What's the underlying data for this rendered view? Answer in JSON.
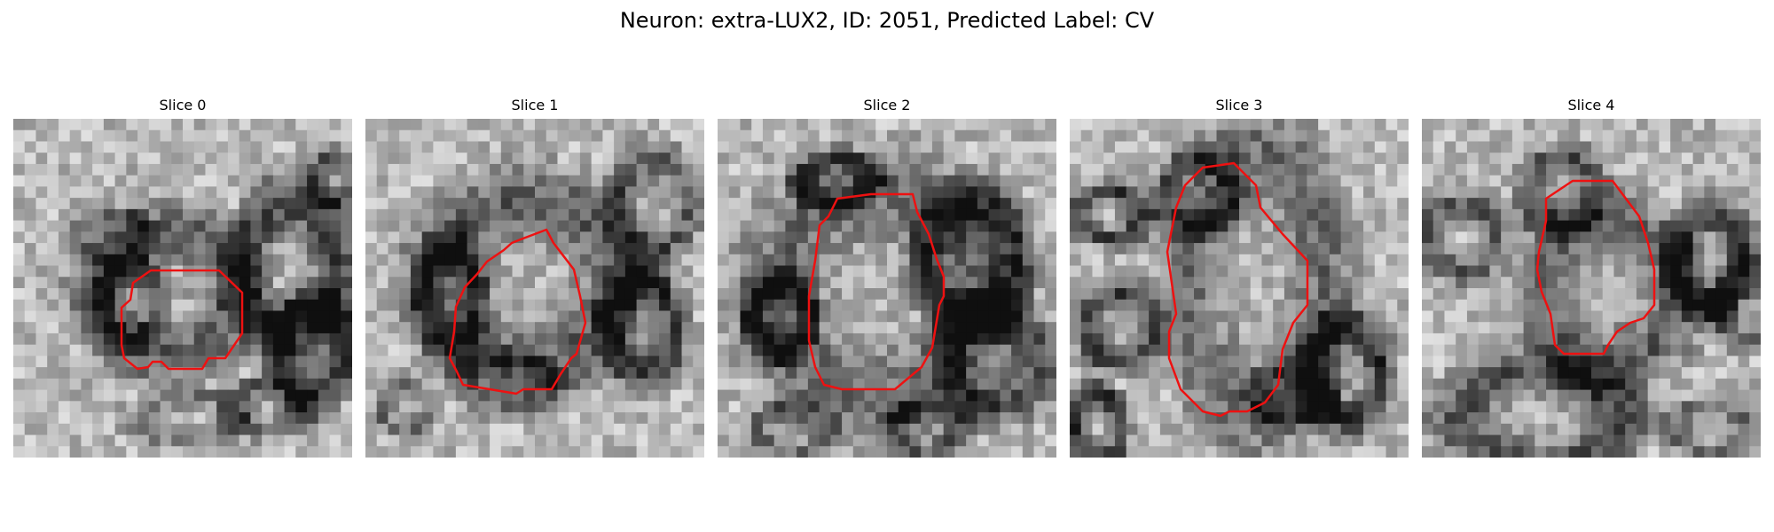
{
  "figure": {
    "suptitle": "Neuron: extra-LUX2, ID: 2051, Predicted Label: CV"
  },
  "panels": [
    {
      "title": "Slice 0"
    },
    {
      "title": "Slice 1"
    },
    {
      "title": "Slice 2"
    },
    {
      "title": "Slice 3"
    },
    {
      "title": "Slice 4"
    }
  ],
  "colors": {
    "contour": "#ee1111",
    "background": "#ffffff"
  }
}
